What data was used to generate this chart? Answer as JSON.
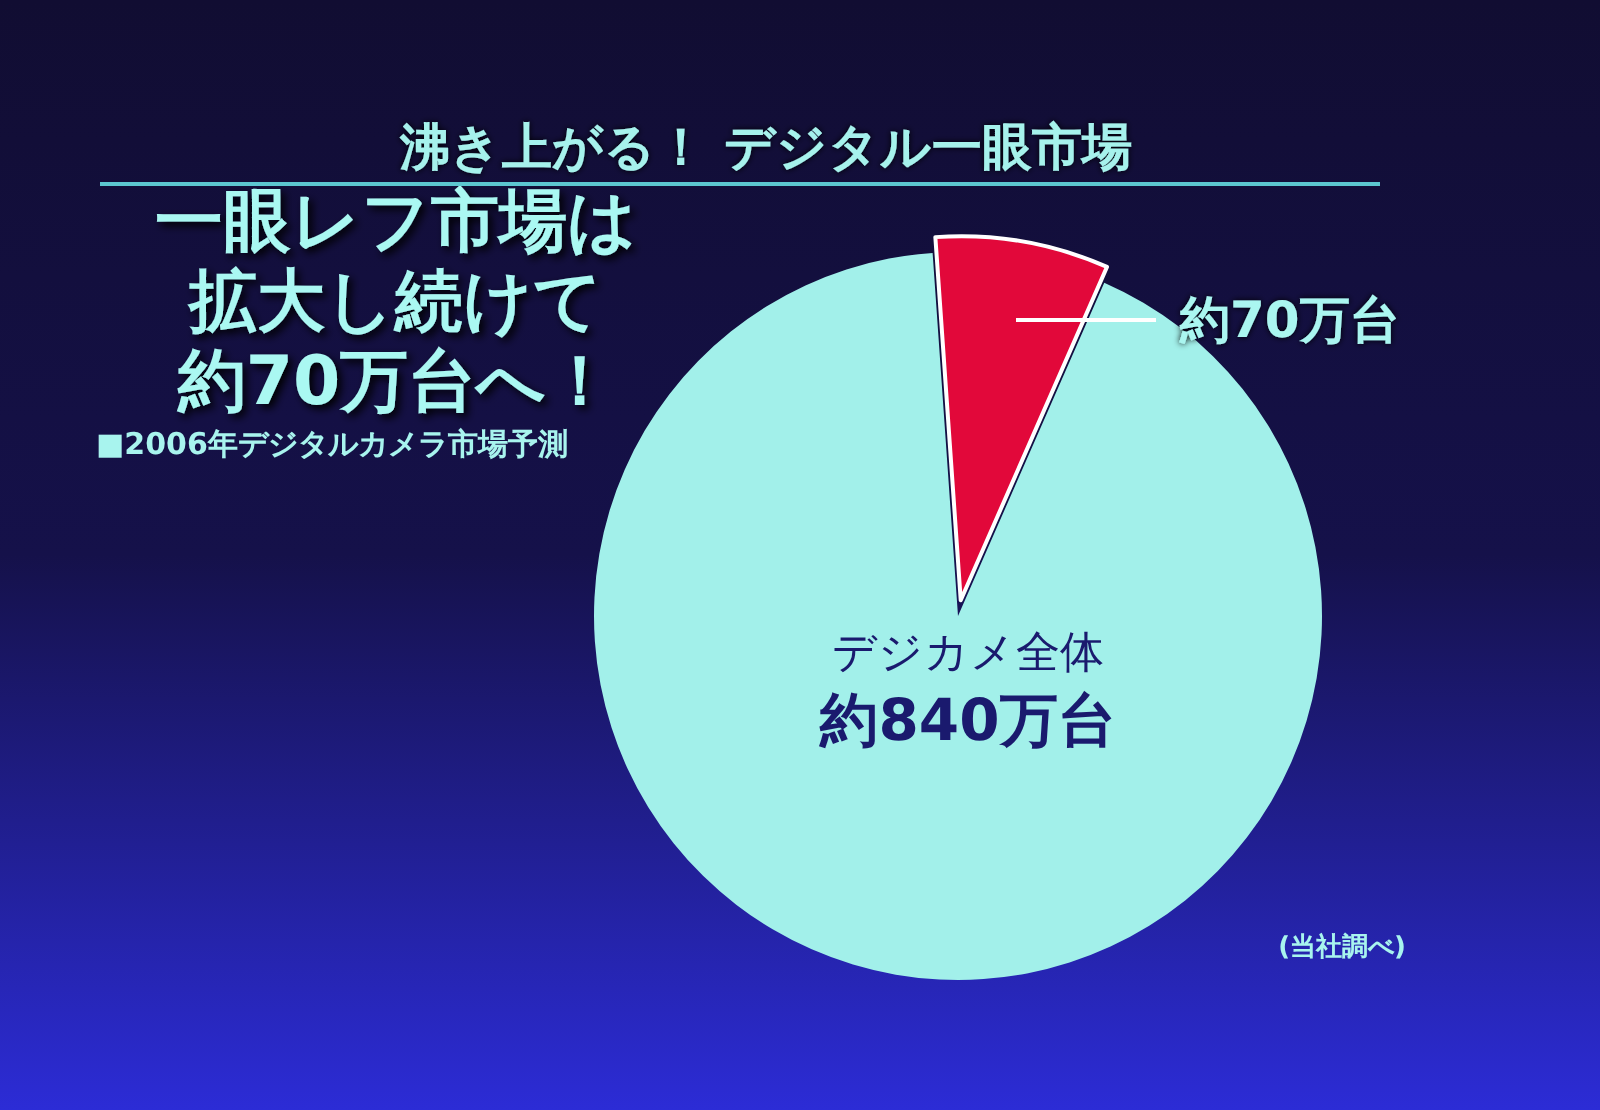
{
  "chart_data": {
    "type": "pie",
    "title": "沸き上がる！ デジタル一眼市場",
    "subtitle": "一眼レフ市場は拡大し続けて約70万台へ！",
    "categories": [
      null,
      "デジカメ全体"
    ],
    "values": [
      70,
      840
    ],
    "colors": [
      "#e2083a",
      "#a2f0ea"
    ],
    "value_labels": [
      "約70万台",
      "約840万台"
    ],
    "annotations": [
      "■2006年デジタルカメラ市場予測",
      "(当社調べ)"
    ]
  }
}
